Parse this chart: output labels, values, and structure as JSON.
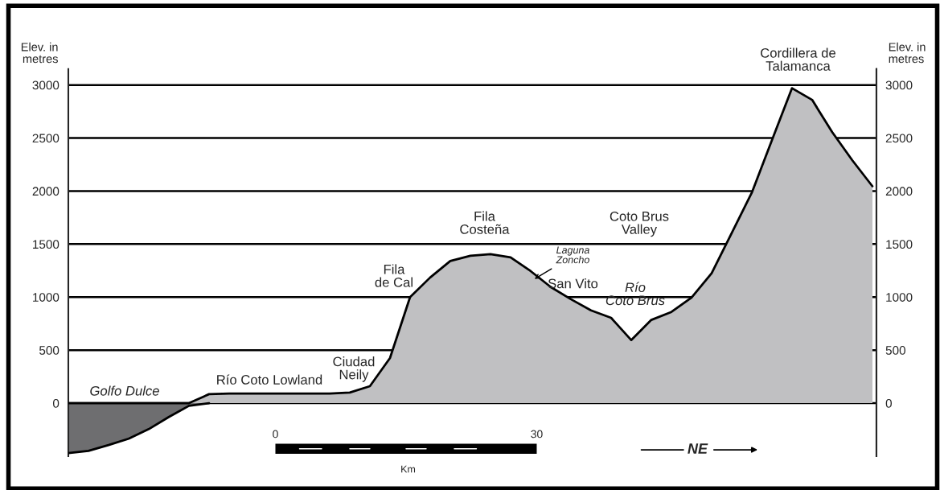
{
  "chart_data": {
    "type": "area",
    "categories": [
      null,
      null,
      null,
      null,
      null,
      null,
      null,
      null,
      null,
      null,
      null,
      null,
      null,
      null,
      null,
      null,
      null,
      null,
      null,
      null,
      null,
      null,
      null,
      null,
      null,
      null,
      null,
      null,
      null,
      null,
      null,
      null,
      null,
      null,
      null,
      null,
      null,
      null,
      null,
      null,
      null
    ],
    "series": [
      {
        "color": "#6e6e70",
        "values": [
          -470,
          -450,
          -395,
          -335,
          -245,
          -130,
          -25,
          0,
          null,
          null,
          null,
          null,
          null,
          null,
          null,
          null,
          null,
          null,
          null,
          null,
          null,
          null,
          null,
          null,
          null,
          null,
          null,
          null,
          null,
          null,
          null,
          null,
          null,
          null,
          null,
          null,
          null,
          null,
          null,
          null,
          null
        ]
      },
      {
        "color": "#c0c0c2",
        "values": [
          0,
          0,
          0,
          0,
          0,
          0,
          0,
          85,
          90,
          90,
          90,
          90,
          90,
          90,
          100,
          160,
          425,
          1000,
          1185,
          1340,
          1390,
          1405,
          1375,
          1245,
          1095,
          980,
          875,
          805,
          595,
          785,
          860,
          995,
          1225,
          1605,
          1985,
          2480,
          2970,
          2860,
          2555,
          2290,
          2045
        ]
      }
    ],
    "ylabel": "Elev. in metres",
    "y2label": "Elev. in metres",
    "ylim": [
      -500,
      3150
    ],
    "yticks": [
      0,
      500,
      1000,
      1500,
      2000,
      2500,
      3000
    ],
    "y2lim": [
      -500,
      3150
    ],
    "y2ticks": [
      0,
      500,
      1000,
      1500,
      2000,
      2500,
      3000
    ],
    "grid": "y",
    "annotations": [
      "Golfo Dulce",
      "Río Coto Lowland",
      "Ciudad Neily",
      "Fila de Cal",
      "Fila Costeña",
      "Laguna Zoncho",
      "San Vito",
      "Coto Brus Valley",
      "Río Coto Brus",
      "Cordillera de Talamanca",
      "0",
      "30",
      "Km",
      "NE"
    ]
  }
}
